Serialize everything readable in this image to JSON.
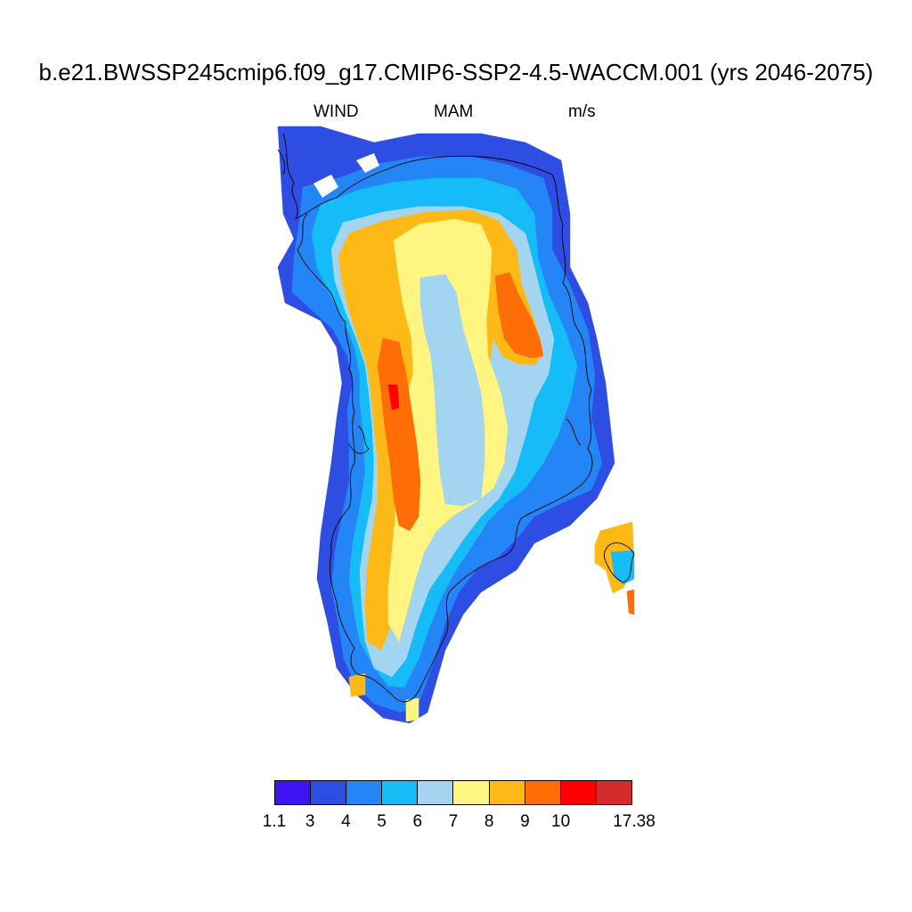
{
  "title": "b.e21.BWSSP245cmip6.f09_g17.CMIP6-SSP2-4.5-WACCM.001 (yrs 2046-2075)",
  "subtitle": {
    "variable": "WIND",
    "season": "MAM",
    "units": "m/s"
  },
  "colorbar": {
    "colors": [
      "#3e14f5",
      "#2d4de3",
      "#2485f7",
      "#16bcf7",
      "#a3d5f0",
      "#fff580",
      "#ffb916",
      "#ff6d07",
      "#ff0000",
      "#d42c2c"
    ],
    "labels": [
      "1.1",
      "3",
      "4",
      "5",
      "6",
      "7",
      "8",
      "9",
      "10",
      "17.38"
    ]
  },
  "map_fields": [
    {
      "level": 0,
      "label": "1.1–3 m/s",
      "color": "#3e14f5"
    },
    {
      "level": 1,
      "label": "3–4 m/s",
      "color": "#2d4de3"
    },
    {
      "level": 2,
      "label": "4–5 m/s",
      "color": "#2485f7"
    },
    {
      "level": 3,
      "label": "5–6 m/s",
      "color": "#16bcf7"
    },
    {
      "level": 4,
      "label": "6–7 m/s",
      "color": "#a3d5f0"
    },
    {
      "level": 5,
      "label": "7–8 m/s",
      "color": "#fff580"
    },
    {
      "level": 6,
      "label": "8–9 m/s",
      "color": "#ffb916"
    },
    {
      "level": 7,
      "label": "9–10 m/s",
      "color": "#ff6d07"
    },
    {
      "level": 8,
      "label": "10–17.38 m/s",
      "color": "#ff0000"
    }
  ]
}
